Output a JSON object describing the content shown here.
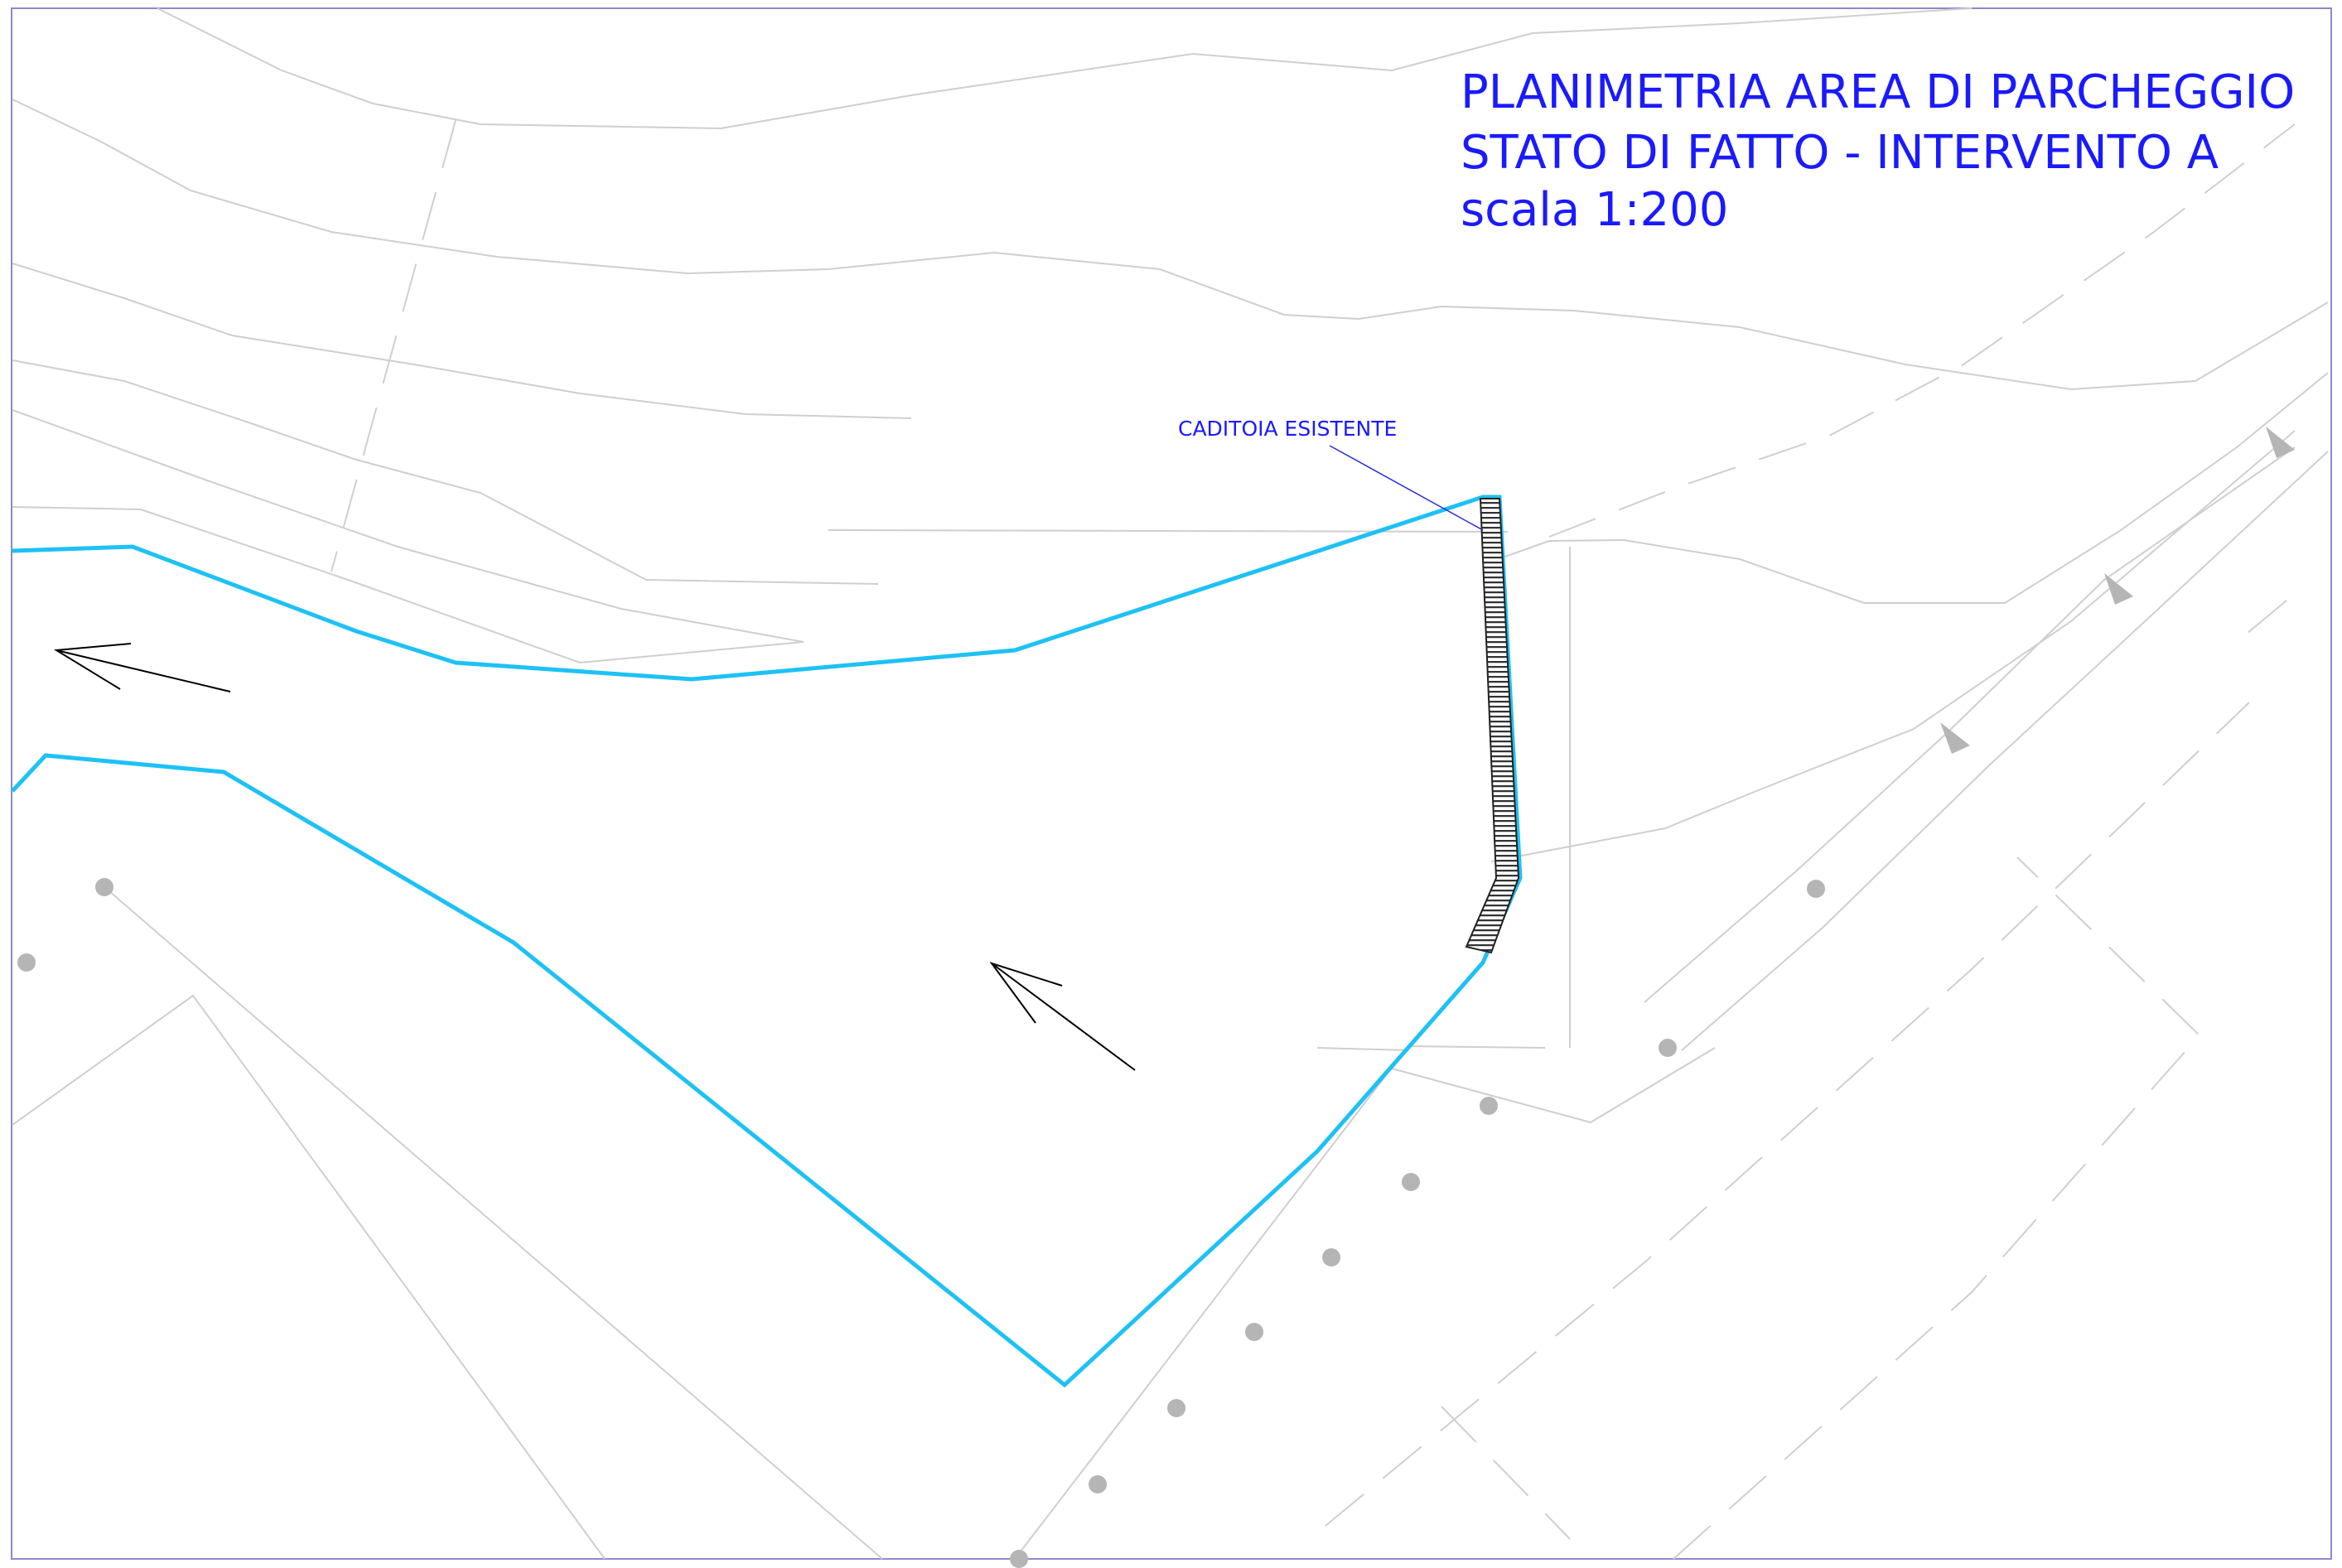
{
  "title": {
    "line1": "PLANIMETRIA AREA DI PARCHEGGIO",
    "line2": "STATO DI FATTO - INTERVENTO A",
    "line3": "scala 1:200"
  },
  "labels": {
    "drain": "CADITOIA ESISTENTE"
  },
  "colors": {
    "title_text": "#1a1aff",
    "parking_boundary": "#1ec1f5",
    "terrain_lines": "#cfcfcf",
    "drain_hatch": "#333333",
    "flow_arrows": "#000000",
    "markers": "#b5b5b5",
    "frame": "#8a8acc"
  },
  "symbols": {
    "flow_direction": "flow-arrow-icon",
    "post_marker": "dot-marker",
    "road_direction": "triangle-marker"
  }
}
